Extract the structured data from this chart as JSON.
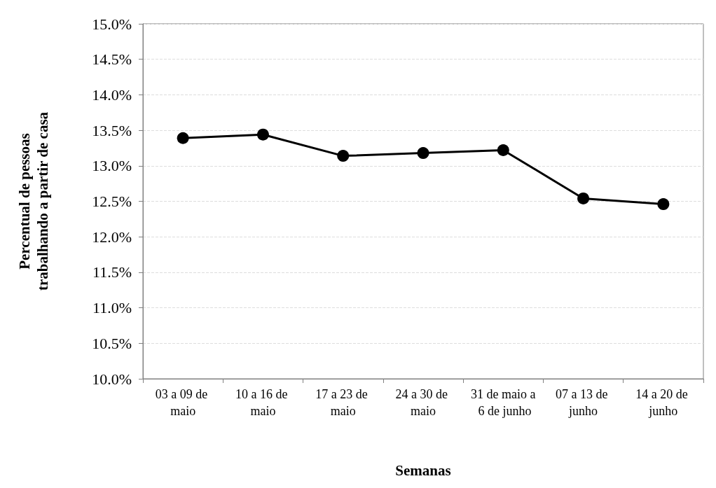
{
  "chart_data": {
    "type": "line",
    "xlabel": "Semanas",
    "ylabel": "Percentual de pessoas\ntrabalhando a partir de casa",
    "categories": [
      "03 a 09 de maio",
      "10 a 16 de maio",
      "17 a 23 de maio",
      "24 a 30 de maio",
      "31 de maio a 6 de junho",
      "07 a 13 de junho",
      "14 a 20 de junho"
    ],
    "series": [
      {
        "color": "#000000",
        "values": [
          13.39,
          13.44,
          13.14,
          13.18,
          13.22,
          12.54,
          12.46
        ]
      }
    ],
    "ylim": [
      10,
      15
    ],
    "yticks": [
      {
        "value": 10,
        "label": "10.0%"
      },
      {
        "value": 10.5,
        "label": "10.5%"
      },
      {
        "value": 11,
        "label": "11.0%"
      },
      {
        "value": 11.5,
        "label": "11.5%"
      },
      {
        "value": 12,
        "label": "12.0%"
      },
      {
        "value": 12.5,
        "label": "12.5%"
      },
      {
        "value": 13,
        "label": "13.0%"
      },
      {
        "value": 13.5,
        "label": "13.5%"
      },
      {
        "value": 14,
        "label": "14.0%"
      },
      {
        "value": 14.5,
        "label": "14.5%"
      },
      {
        "value": 15,
        "label": "15.0%"
      }
    ],
    "grid": "y",
    "marker": "circle",
    "line_style": "solid"
  }
}
